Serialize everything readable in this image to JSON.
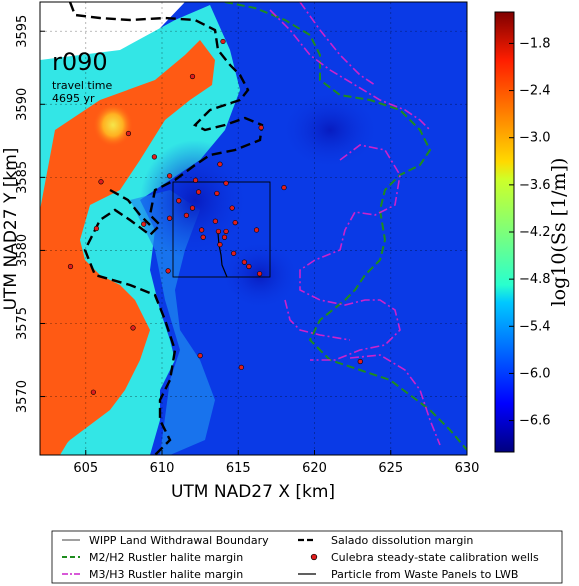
{
  "run_label": "r090",
  "travel_time_label": "travel time",
  "travel_time_value": "4695 yr",
  "x_axis_label": "UTM NAD27 X [km]",
  "y_axis_label": "UTM NAD27 Y [km]",
  "colorbar_label": "log10(Ss [1/m])",
  "x_ticks": [
    "605",
    "610",
    "615",
    "620",
    "625",
    "630"
  ],
  "y_ticks": [
    "3570",
    "3575",
    "3580",
    "3585",
    "3590",
    "3595"
  ],
  "colorbar_ticks": [
    "−1.8",
    "−2.4",
    "−3.0",
    "−3.6",
    "−4.2",
    "−4.8",
    "−5.4",
    "−6.0",
    "−6.6"
  ],
  "legend": {
    "wipp": "WIPP Land Withdrawal Boundary",
    "salado": "Salado dissolution margin",
    "m2h2": "M2/H2 Rustler halite margin",
    "wells": "Culebra steady-state calibration wells",
    "m3h3": "M3/H3 Rustler halite margin",
    "particle": "Particle from Waste Panels to LWB"
  },
  "colors": {
    "background_blue": "#0a3ae6",
    "deep_blue": "#0a1ec8",
    "cyan_zone": "#33e6e6",
    "orange_zone": "#ff5a14",
    "yellow_spot": "#f5dc3c",
    "m2h2_line": "#1e8c1e",
    "m3h3_line": "#cc22cc",
    "salado_line": "#000000",
    "well_marker": "#e01e1e"
  },
  "chart_data": {
    "type": "heatmap",
    "x_range_km": [
      602,
      630
    ],
    "y_range_km": [
      3566,
      3597
    ],
    "colorbar_range": [
      -7.0,
      -1.4
    ],
    "wells": [
      [
        614.0,
        3594.3
      ],
      [
        612.0,
        3591.9
      ],
      [
        616.5,
        3588.4
      ],
      [
        613.8,
        3585.9
      ],
      [
        609.5,
        3586.4
      ],
      [
        610.5,
        3585.1
      ],
      [
        612.2,
        3584.8
      ],
      [
        614.2,
        3584.6
      ],
      [
        618.0,
        3584.3
      ],
      [
        612.4,
        3584.0
      ],
      [
        613.6,
        3583.9
      ],
      [
        611.1,
        3583.4
      ],
      [
        612.0,
        3582.9
      ],
      [
        614.6,
        3582.9
      ],
      [
        611.6,
        3582.4
      ],
      [
        610.5,
        3582.2
      ],
      [
        613.5,
        3582.0
      ],
      [
        614.8,
        3581.9
      ],
      [
        612.6,
        3581.4
      ],
      [
        613.7,
        3581.3
      ],
      [
        614.2,
        3581.3
      ],
      [
        616.2,
        3581.4
      ],
      [
        614.1,
        3580.9
      ],
      [
        612.7,
        3580.9
      ],
      [
        613.8,
        3580.4
      ],
      [
        614.7,
        3579.8
      ],
      [
        615.4,
        3579.2
      ],
      [
        615.7,
        3578.9
      ],
      [
        616.4,
        3578.4
      ],
      [
        610.4,
        3578.6
      ],
      [
        605.7,
        3581.5
      ],
      [
        608.8,
        3581.8
      ],
      [
        607.8,
        3588.0
      ],
      [
        606.0,
        3584.7
      ],
      [
        604.0,
        3578.9
      ],
      [
        608.1,
        3574.7
      ],
      [
        605.5,
        3570.3
      ],
      [
        612.5,
        3572.8
      ],
      [
        623.0,
        3572.4
      ],
      [
        615.2,
        3572.0
      ]
    ]
  }
}
